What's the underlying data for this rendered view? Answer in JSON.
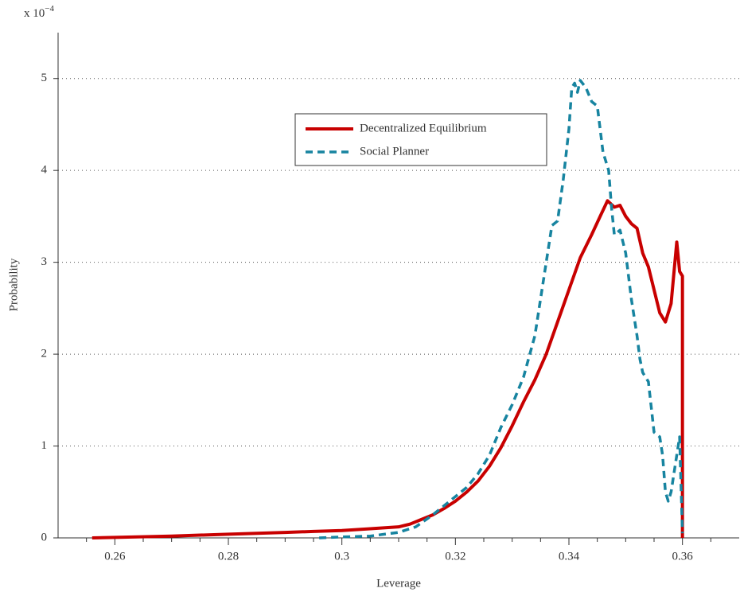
{
  "chart_data": {
    "type": "line",
    "ylabel": "Probability",
    "xlabel": "Leverage",
    "axis_multiplier": "x 10",
    "axis_exponent": "−4",
    "xlim": [
      0.25,
      0.37
    ],
    "ylim": [
      0,
      5.5
    ],
    "xticks": [
      0.26,
      0.28,
      0.3,
      0.32,
      0.34,
      0.36
    ],
    "xminorticks": [
      0.255,
      0.265,
      0.27,
      0.275,
      0.285,
      0.29,
      0.295,
      0.305,
      0.31,
      0.315,
      0.325,
      0.33,
      0.335,
      0.345,
      0.35,
      0.355,
      0.365
    ],
    "yticks": [
      0,
      1,
      2,
      3,
      4,
      5
    ],
    "grid": true,
    "series": [
      {
        "name": "Decentralized Equilibrium",
        "color": "#c80000",
        "dash": "solid",
        "x": [
          0.256,
          0.26,
          0.27,
          0.28,
          0.29,
          0.295,
          0.3,
          0.305,
          0.31,
          0.312,
          0.314,
          0.316,
          0.318,
          0.32,
          0.322,
          0.324,
          0.326,
          0.328,
          0.33,
          0.332,
          0.334,
          0.336,
          0.338,
          0.34,
          0.342,
          0.344,
          0.3455,
          0.3468,
          0.348,
          0.349,
          0.35,
          0.351,
          0.352,
          0.353,
          0.354,
          0.355,
          0.356,
          0.357,
          0.358,
          0.359,
          0.3595,
          0.36,
          0.36
        ],
        "values": [
          0,
          0.005,
          0.02,
          0.04,
          0.06,
          0.07,
          0.08,
          0.1,
          0.12,
          0.15,
          0.2,
          0.25,
          0.32,
          0.4,
          0.5,
          0.62,
          0.78,
          0.98,
          1.22,
          1.48,
          1.72,
          2.0,
          2.35,
          2.7,
          3.05,
          3.3,
          3.5,
          3.67,
          3.6,
          3.62,
          3.5,
          3.42,
          3.37,
          3.1,
          2.95,
          2.7,
          2.45,
          2.35,
          2.55,
          3.22,
          2.9,
          2.85,
          0
        ]
      },
      {
        "name": "Social Planner",
        "color": "#1784a0",
        "dash": "dashed",
        "x": [
          0.296,
          0.3,
          0.305,
          0.31,
          0.313,
          0.316,
          0.318,
          0.32,
          0.322,
          0.324,
          0.326,
          0.328,
          0.33,
          0.332,
          0.334,
          0.335,
          0.336,
          0.337,
          0.338,
          0.339,
          0.34,
          0.3405,
          0.341,
          0.3415,
          0.342,
          0.343,
          0.344,
          0.345,
          0.346,
          0.347,
          0.3475,
          0.348,
          0.349,
          0.35,
          0.351,
          0.352,
          0.3525,
          0.353,
          0.354,
          0.355,
          0.356,
          0.3565,
          0.357,
          0.3575,
          0.358,
          0.3585,
          0.359,
          0.3595,
          0.36
        ],
        "values": [
          0,
          0.01,
          0.02,
          0.06,
          0.12,
          0.25,
          0.35,
          0.45,
          0.55,
          0.7,
          0.9,
          1.2,
          1.45,
          1.75,
          2.2,
          2.6,
          3.0,
          3.4,
          3.45,
          3.9,
          4.45,
          4.9,
          4.95,
          4.85,
          4.98,
          4.9,
          4.75,
          4.7,
          4.2,
          4.0,
          3.6,
          3.3,
          3.35,
          3.1,
          2.6,
          2.2,
          1.95,
          1.8,
          1.7,
          1.15,
          1.1,
          0.9,
          0.5,
          0.4,
          0.5,
          0.7,
          0.9,
          1.1,
          0.05
        ]
      }
    ]
  }
}
